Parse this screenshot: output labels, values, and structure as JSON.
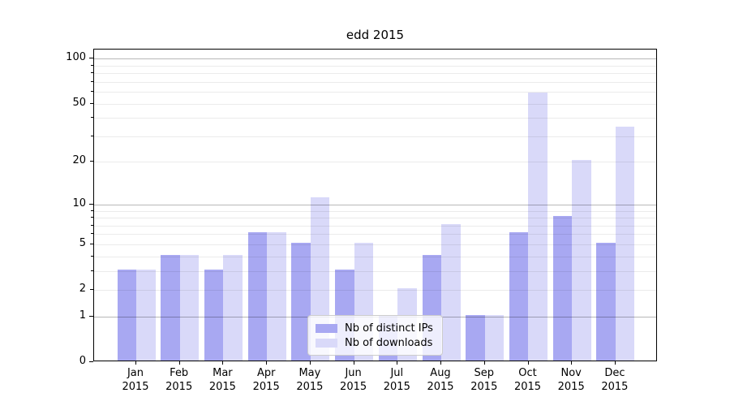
{
  "chart_data": {
    "type": "bar",
    "title": "edd 2015",
    "year_label": "2015",
    "categories": [
      "Jan",
      "Feb",
      "Mar",
      "Apr",
      "May",
      "Jun",
      "Jul",
      "Aug",
      "Sep",
      "Oct",
      "Nov",
      "Dec"
    ],
    "series": [
      {
        "name": "Nb of distinct IPs",
        "color": "#a8a8f2",
        "values": [
          3,
          4,
          3,
          6,
          5,
          3,
          1,
          4,
          1,
          6,
          8,
          5
        ]
      },
      {
        "name": "Nb of downloads",
        "color": "#d9d9f9",
        "values": [
          3,
          4,
          4,
          6,
          11,
          5,
          2,
          7,
          1,
          58,
          20,
          34
        ]
      }
    ],
    "yscale": "log1p",
    "ylim": [
      0,
      115
    ],
    "ytick_labels": [
      "0",
      "1",
      "2",
      "5",
      "10",
      "20",
      "50",
      "100"
    ],
    "yticks": [
      0,
      1,
      2,
      5,
      10,
      20,
      50,
      100
    ],
    "major_gridlines": [
      1,
      10,
      100
    ],
    "minor_gridlines": [
      2,
      3,
      4,
      5,
      6,
      7,
      8,
      9,
      20,
      30,
      40,
      50,
      60,
      70,
      80,
      90
    ],
    "grid": true,
    "legend_position": "lower-center"
  }
}
